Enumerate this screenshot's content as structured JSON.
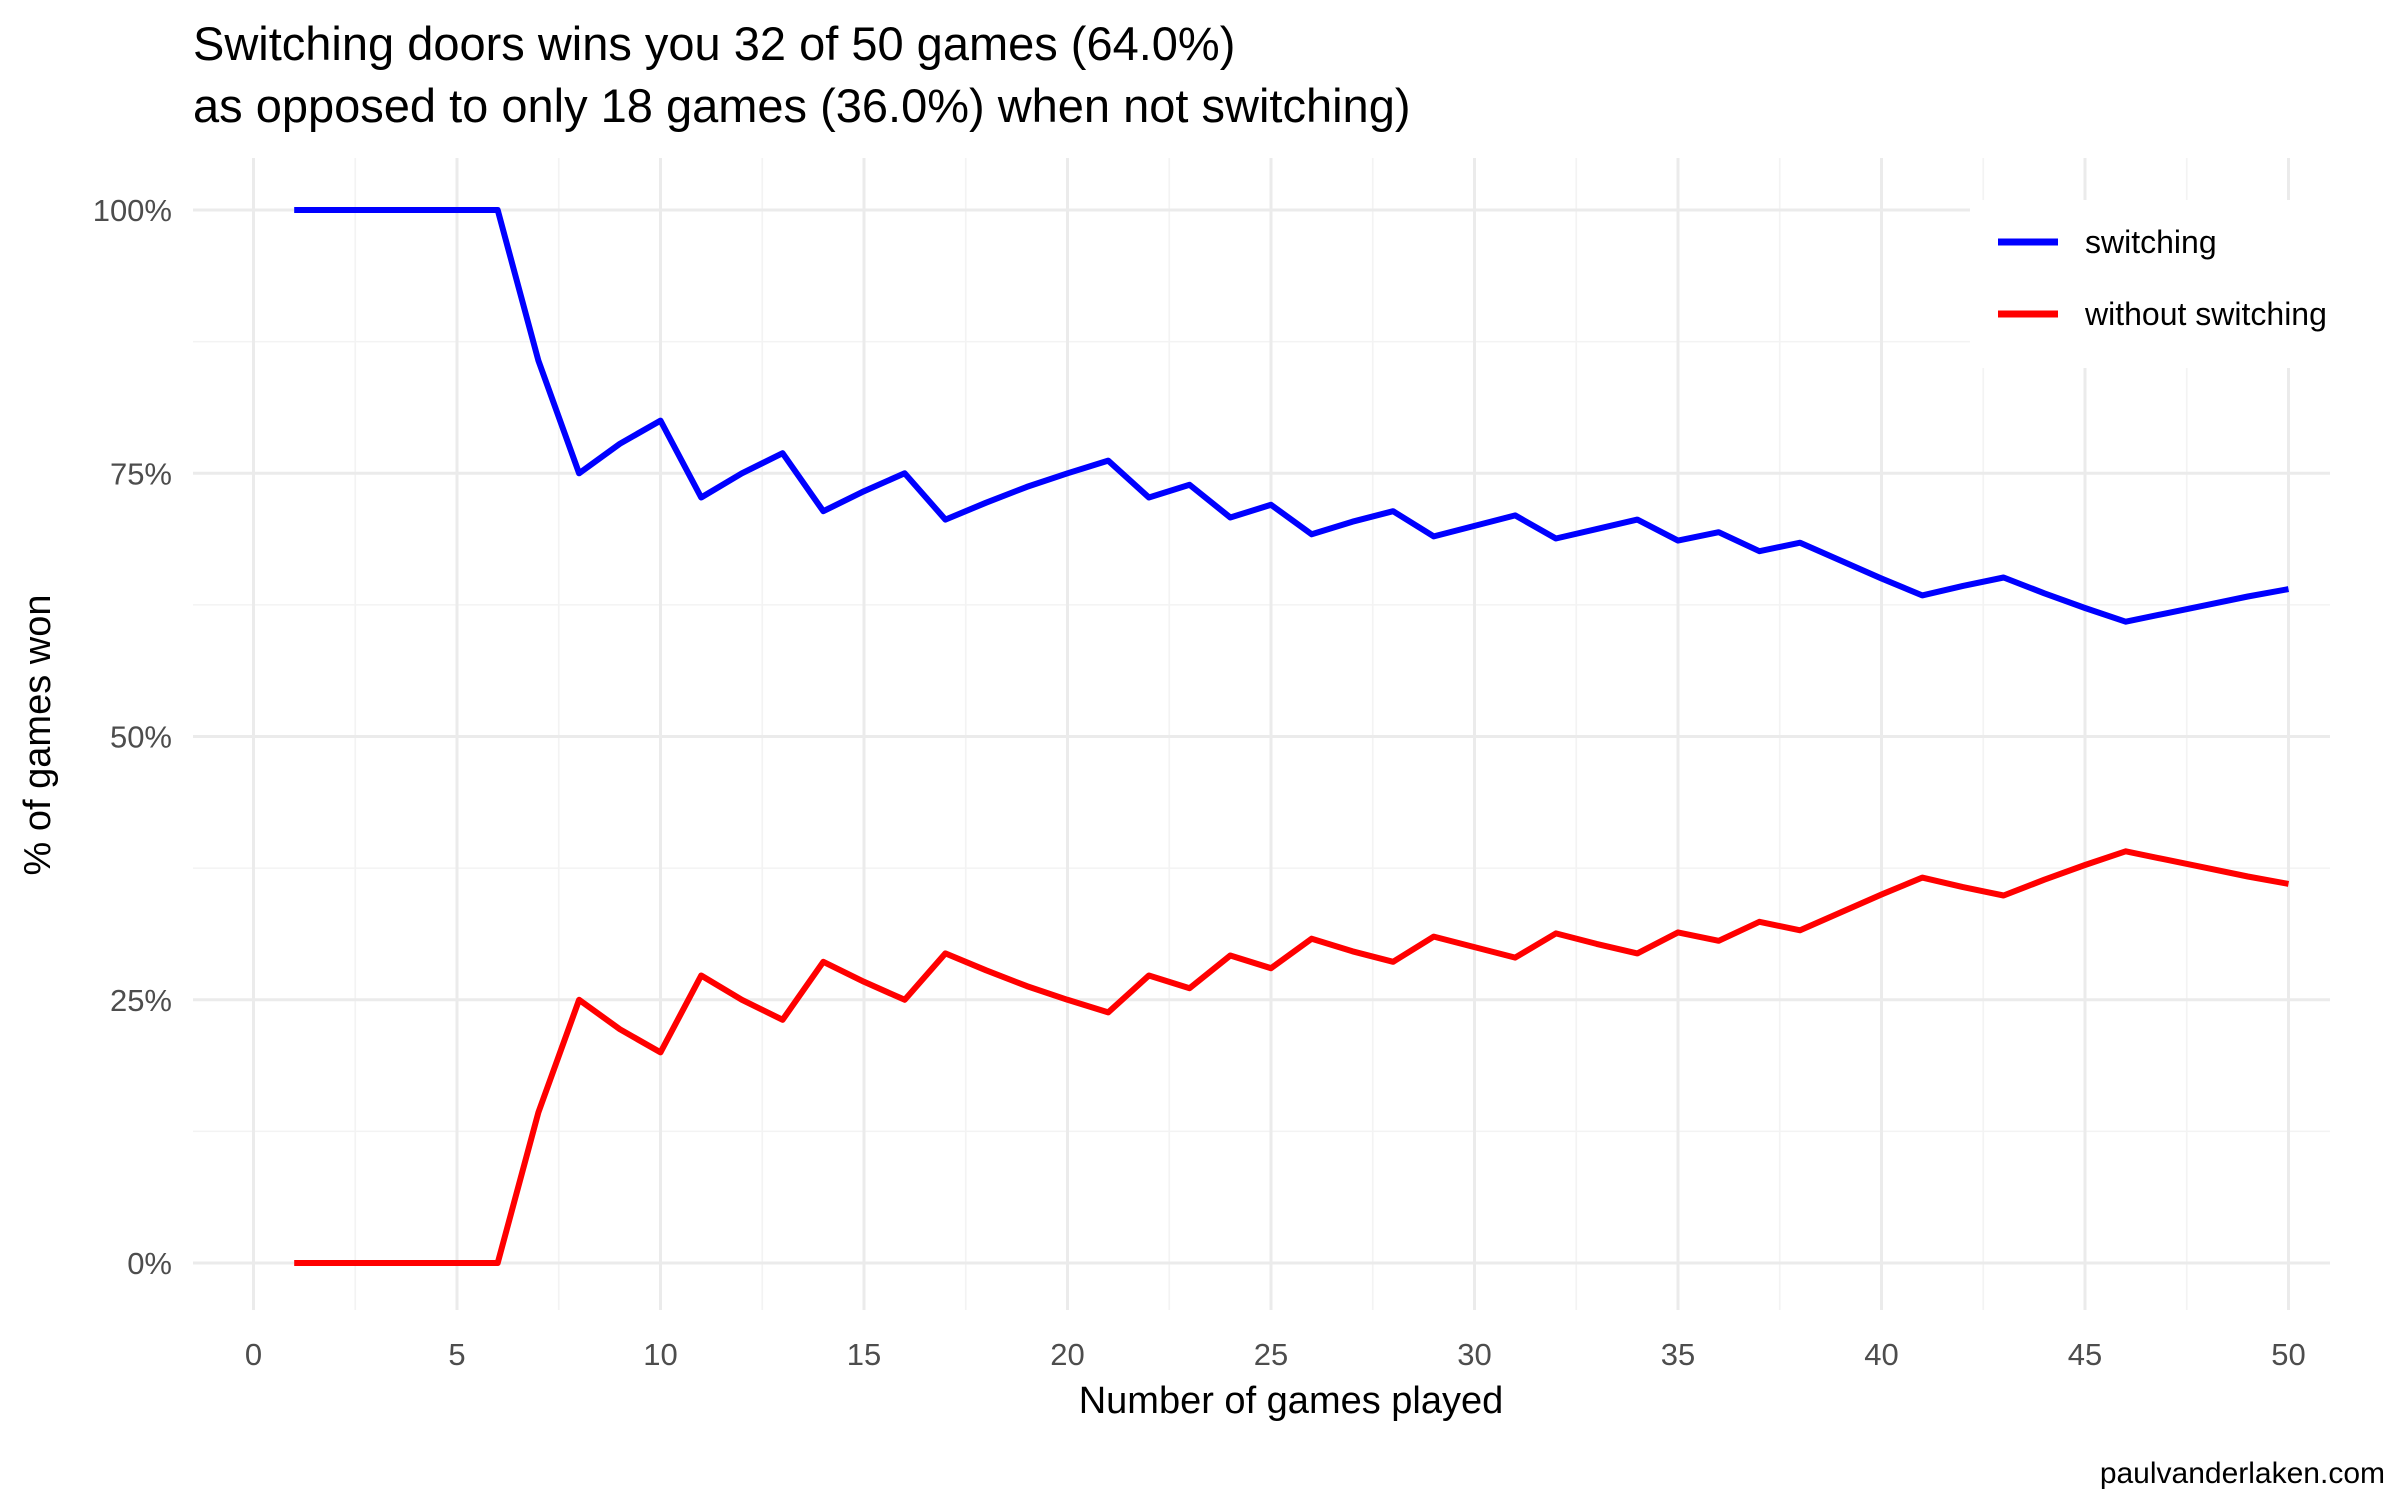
{
  "chart_data": {
    "type": "line",
    "title": "Switching doors wins you 32 of 50 games (64.0%)",
    "subtitle": "as opposed to only 18 games (36.0%) when not switching)",
    "xlabel": "Number of games played",
    "ylabel": "% of games won",
    "caption": "paulvanderlaken.com",
    "xlim": [
      0,
      50
    ],
    "ylim": [
      0,
      1
    ],
    "x_ticks": [
      0,
      5,
      10,
      15,
      20,
      25,
      30,
      35,
      40,
      45,
      50
    ],
    "y_ticks": [
      {
        "value": 0,
        "label": "0%"
      },
      {
        "value": 0.25,
        "label": "25%"
      },
      {
        "value": 0.5,
        "label": "50%"
      },
      {
        "value": 0.75,
        "label": "75%"
      },
      {
        "value": 1,
        "label": "100%"
      }
    ],
    "grid": true,
    "legend_position": "top-right",
    "x": [
      1,
      2,
      3,
      4,
      5,
      6,
      7,
      8,
      9,
      10,
      11,
      12,
      13,
      14,
      15,
      16,
      17,
      18,
      19,
      20,
      21,
      22,
      23,
      24,
      25,
      26,
      27,
      28,
      29,
      30,
      31,
      32,
      33,
      34,
      35,
      36,
      37,
      38,
      39,
      40,
      41,
      42,
      43,
      44,
      45,
      46,
      47,
      48,
      49,
      50
    ],
    "series": [
      {
        "name": "switching",
        "color": "#0000ff",
        "values": [
          1.0,
          1.0,
          1.0,
          1.0,
          1.0,
          1.0,
          0.857,
          0.75,
          0.778,
          0.8,
          0.727,
          0.75,
          0.769,
          0.714,
          0.733,
          0.75,
          0.706,
          0.722,
          0.737,
          0.75,
          0.762,
          0.727,
          0.739,
          0.708,
          0.72,
          0.692,
          0.704,
          0.714,
          0.69,
          0.7,
          0.71,
          0.688,
          0.697,
          0.706,
          0.686,
          0.694,
          0.676,
          0.684,
          0.667,
          0.65,
          0.634,
          0.643,
          0.651,
          0.636,
          0.622,
          0.609,
          0.617,
          0.625,
          0.633,
          0.64
        ]
      },
      {
        "name": "without switching",
        "color": "#ff0000",
        "values": [
          0.0,
          0.0,
          0.0,
          0.0,
          0.0,
          0.0,
          0.143,
          0.25,
          0.222,
          0.2,
          0.273,
          0.25,
          0.231,
          0.286,
          0.267,
          0.25,
          0.294,
          0.278,
          0.263,
          0.25,
          0.238,
          0.273,
          0.261,
          0.292,
          0.28,
          0.308,
          0.296,
          0.286,
          0.31,
          0.3,
          0.29,
          0.313,
          0.303,
          0.294,
          0.314,
          0.306,
          0.324,
          0.316,
          0.333,
          0.35,
          0.366,
          0.357,
          0.349,
          0.364,
          0.378,
          0.391,
          0.383,
          0.375,
          0.367,
          0.36
        ]
      }
    ]
  }
}
